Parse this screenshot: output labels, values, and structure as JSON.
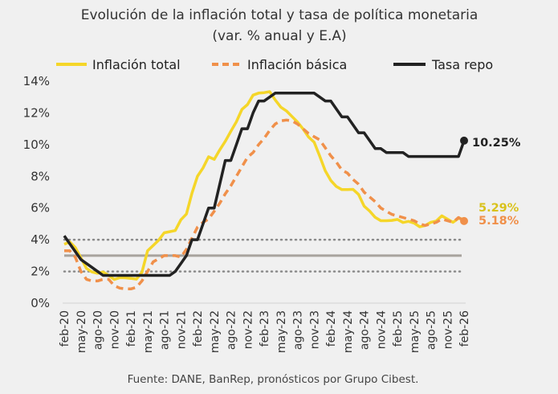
{
  "chart_data": {
    "type": "line",
    "title": "Evolución de la inflación total y tasa de política monetaria",
    "subtitle": "(var. % anual y E.A)",
    "source": "Fuente: DANE, BanRep, pronósticos por Grupo Cibest.",
    "x_start": "feb-20",
    "x_end": "feb-26",
    "xtick_labels": [
      "feb-20",
      "may-20",
      "ago-20",
      "nov-20",
      "feb-21",
      "may-21",
      "ago-21",
      "nov-21",
      "feb-22",
      "may-22",
      "ago-22",
      "nov-22",
      "feb-23",
      "may-23",
      "ago-23",
      "nov-23",
      "feb-24",
      "may-24",
      "ago-24",
      "nov-24",
      "feb-25",
      "may-25",
      "ago-25",
      "nov-25",
      "feb-26"
    ],
    "ylim": [
      0,
      14
    ],
    "yticks": [
      0,
      2,
      4,
      6,
      8,
      10,
      12,
      14
    ],
    "ytick_labels": [
      "0%",
      "2%",
      "4%",
      "6%",
      "8%",
      "10%",
      "12%",
      "14%"
    ],
    "legend_position": "top",
    "reference_lines": [
      {
        "value": 2,
        "style": "dotted",
        "color": "#8a8a8a"
      },
      {
        "value": 3,
        "style": "solid",
        "color": "#a8a39d"
      },
      {
        "value": 4,
        "style": "dotted",
        "color": "#8a8a8a"
      }
    ],
    "series": [
      {
        "name": "Inflación total",
        "color": "#f5d629",
        "style": "solid",
        "end_label": "5.29%",
        "end_label_color": "#d9c21c",
        "values": [
          3.72,
          3.86,
          3.51,
          2.85,
          2.19,
          1.97,
          1.88,
          1.97,
          1.75,
          1.49,
          1.61,
          1.6,
          1.56,
          1.51,
          1.95,
          3.3,
          3.63,
          3.97,
          4.44,
          4.51,
          4.58,
          5.26,
          5.62,
          6.94,
          8.01,
          8.53,
          9.23,
          9.07,
          9.67,
          10.21,
          10.84,
          11.44,
          12.22,
          12.53,
          13.12,
          13.25,
          13.28,
          13.34,
          12.82,
          12.36,
          12.13,
          11.78,
          11.43,
          10.99,
          10.48,
          10.15,
          9.28,
          8.35,
          7.74,
          7.36,
          7.16,
          7.16,
          7.18,
          6.86,
          6.12,
          5.81,
          5.41,
          5.2,
          5.2,
          5.22,
          5.28,
          5.09,
          5.16,
          5.05,
          4.82,
          4.9,
          5.1,
          5.18,
          5.51,
          5.3,
          5.1,
          5.35,
          5.29
        ]
      },
      {
        "name": "Inflación básica",
        "color": "#f0904a",
        "style": "dashed",
        "end_label": "5.18%",
        "end_label_color": "#f0904a",
        "values": [
          3.3,
          3.3,
          2.9,
          2.0,
          1.5,
          1.4,
          1.4,
          1.5,
          1.5,
          1.1,
          0.95,
          0.9,
          0.9,
          1.0,
          1.4,
          2.0,
          2.6,
          2.8,
          3.0,
          3.0,
          3.0,
          2.9,
          3.4,
          4.1,
          4.8,
          5.1,
          5.3,
          5.8,
          6.3,
          6.9,
          7.4,
          8.0,
          8.6,
          9.2,
          9.5,
          10.0,
          10.4,
          10.9,
          11.3,
          11.5,
          11.55,
          11.5,
          11.3,
          11.0,
          10.7,
          10.5,
          10.3,
          9.8,
          9.3,
          8.9,
          8.4,
          8.2,
          7.8,
          7.5,
          7.0,
          6.7,
          6.4,
          6.0,
          5.8,
          5.6,
          5.5,
          5.4,
          5.3,
          5.2,
          5.0,
          4.9,
          5.0,
          5.1,
          5.3,
          5.2,
          5.1,
          5.4,
          5.18
        ]
      },
      {
        "name": "Tasa repo",
        "color": "#222222",
        "style": "solid",
        "end_label": "10.25%",
        "end_label_color": "#222222",
        "values": [
          4.25,
          3.75,
          3.25,
          2.75,
          2.5,
          2.25,
          2.0,
          1.75,
          1.75,
          1.75,
          1.75,
          1.75,
          1.75,
          1.75,
          1.75,
          1.75,
          1.75,
          1.75,
          1.75,
          1.75,
          2.0,
          2.5,
          3.0,
          4.0,
          4.0,
          5.0,
          6.0,
          6.0,
          7.5,
          9.0,
          9.0,
          10.0,
          11.0,
          11.0,
          12.0,
          12.75,
          12.75,
          13.0,
          13.25,
          13.25,
          13.25,
          13.25,
          13.25,
          13.25,
          13.25,
          13.25,
          13.0,
          12.75,
          12.75,
          12.25,
          11.75,
          11.75,
          11.25,
          10.75,
          10.75,
          10.25,
          9.75,
          9.75,
          9.5,
          9.5,
          9.5,
          9.5,
          9.25,
          9.25,
          9.25,
          9.25,
          9.25,
          9.25,
          9.25,
          9.25,
          9.25,
          9.25,
          10.25
        ]
      }
    ]
  }
}
